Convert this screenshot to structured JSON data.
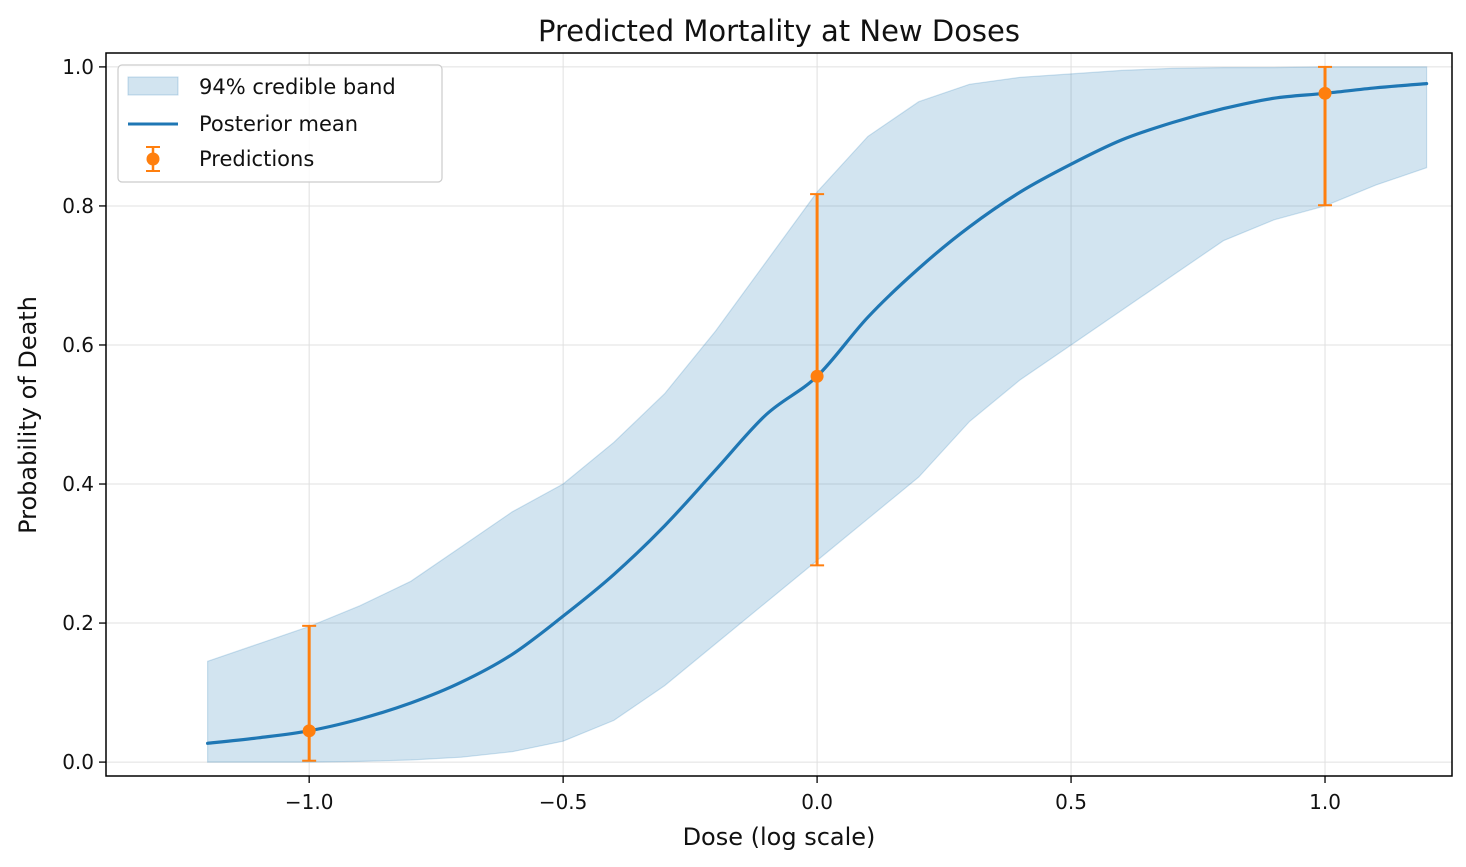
{
  "chart_data": {
    "type": "line",
    "title": "Predicted Mortality at New Doses",
    "xlabel": "Dose (log scale)",
    "ylabel": "Probability of Death",
    "xlim": [
      -1.4,
      1.25
    ],
    "ylim": [
      -0.02,
      1.02
    ],
    "xticks": [
      -1.0,
      -0.5,
      0.0,
      0.5,
      1.0
    ],
    "xtick_labels": [
      "−1.0",
      "−0.5",
      "0.0",
      "0.5",
      "1.0"
    ],
    "yticks": [
      0.0,
      0.2,
      0.4,
      0.6,
      0.8,
      1.0
    ],
    "ytick_labels": [
      "0.0",
      "0.2",
      "0.4",
      "0.6",
      "0.8",
      "1.0"
    ],
    "grid": true,
    "legend_position": "upper-left",
    "colors": {
      "band": "#1f77b4",
      "mean": "#1f77b4",
      "predictions": "#ff7f0e"
    },
    "band": {
      "name": "94% credible band",
      "x": [
        -1.2,
        -1.1,
        -1.0,
        -0.9,
        -0.8,
        -0.7,
        -0.6,
        -0.5,
        -0.4,
        -0.3,
        -0.2,
        -0.1,
        0.0,
        0.1,
        0.2,
        0.3,
        0.4,
        0.5,
        0.6,
        0.7,
        0.8,
        0.9,
        1.0,
        1.1,
        1.2
      ],
      "lower": [
        0.0,
        0.0,
        0.0,
        0.001,
        0.003,
        0.007,
        0.015,
        0.03,
        0.06,
        0.11,
        0.17,
        0.23,
        0.29,
        0.35,
        0.41,
        0.49,
        0.55,
        0.6,
        0.65,
        0.7,
        0.75,
        0.78,
        0.8,
        0.83,
        0.855
      ],
      "upper": [
        0.145,
        0.17,
        0.195,
        0.225,
        0.26,
        0.31,
        0.36,
        0.4,
        0.46,
        0.53,
        0.62,
        0.72,
        0.82,
        0.9,
        0.95,
        0.975,
        0.985,
        0.99,
        0.995,
        0.998,
        0.999,
        0.999,
        1.0,
        1.0,
        1.0
      ]
    },
    "mean": {
      "name": "Posterior mean",
      "x": [
        -1.2,
        -1.1,
        -1.0,
        -0.9,
        -0.8,
        -0.7,
        -0.6,
        -0.5,
        -0.4,
        -0.3,
        -0.2,
        -0.1,
        0.0,
        0.1,
        0.2,
        0.3,
        0.4,
        0.5,
        0.6,
        0.7,
        0.8,
        0.9,
        1.0,
        1.1,
        1.2
      ],
      "y": [
        0.027,
        0.035,
        0.045,
        0.062,
        0.085,
        0.115,
        0.155,
        0.21,
        0.27,
        0.34,
        0.42,
        0.5,
        0.555,
        0.64,
        0.71,
        0.77,
        0.82,
        0.86,
        0.895,
        0.92,
        0.94,
        0.955,
        0.962,
        0.97,
        0.976
      ]
    },
    "predictions": {
      "name": "Predictions",
      "x": [
        -1.0,
        0.0,
        1.0
      ],
      "y": [
        0.045,
        0.555,
        0.962
      ],
      "lower": [
        0.002,
        0.283,
        0.801
      ],
      "upper": [
        0.196,
        0.817,
        1.0
      ]
    }
  }
}
